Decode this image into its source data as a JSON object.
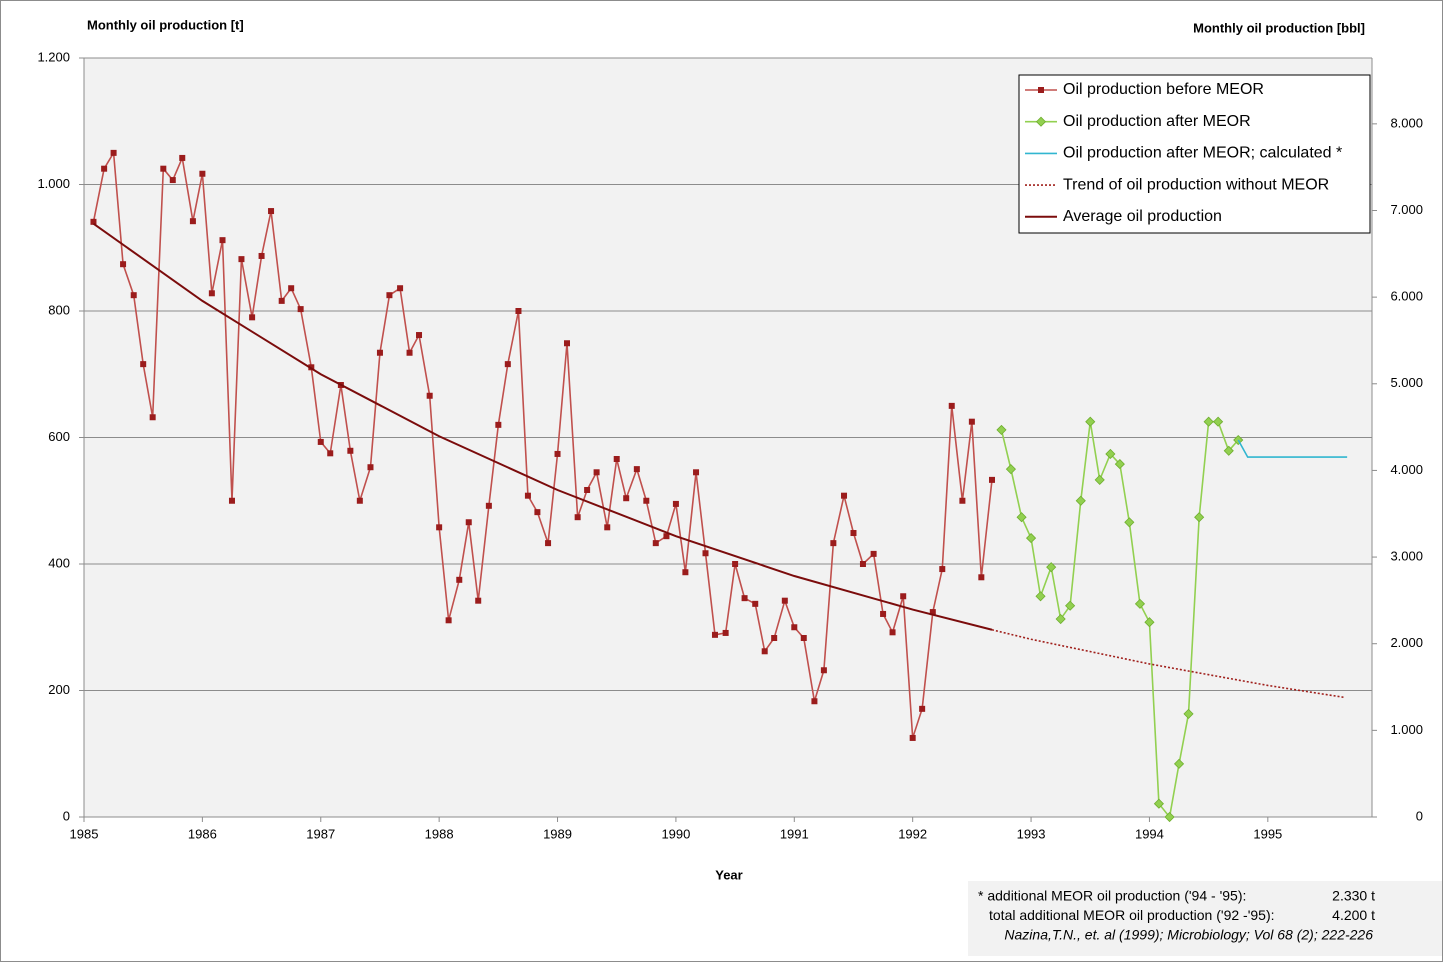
{
  "chart_data": {
    "type": "line",
    "y_title": "Monthly oil production  [t]",
    "y2_title": "Monthly oil production  [bbl]",
    "x_title": "Year",
    "xlim": [
      1985,
      1995.88
    ],
    "xticks": [
      1985,
      1986,
      1987,
      1988,
      1989,
      1990,
      1991,
      1992,
      1993,
      1994,
      1995
    ],
    "ylim": [
      0,
      1200
    ],
    "yticks": [
      0,
      200,
      400,
      600,
      800,
      {
        "value": 1000,
        "label": "1.000"
      },
      {
        "value": 1200,
        "label": "1.200"
      }
    ],
    "y2lim": [
      0,
      8760
    ],
    "y2ticks": [
      0,
      {
        "value": 1000,
        "label": "1.000"
      },
      {
        "value": 2000,
        "label": "2.000"
      },
      {
        "value": 3000,
        "label": "3.000"
      },
      {
        "value": 4000,
        "label": "4.000"
      },
      {
        "value": 5000,
        "label": "5.000"
      },
      {
        "value": 6000,
        "label": "6.000"
      },
      {
        "value": 7000,
        "label": "7.000"
      },
      {
        "value": 8000,
        "label": "8.000"
      }
    ],
    "grid": true,
    "legend": "upper right",
    "series": [
      {
        "name": "Oil production before MEOR",
        "color": "#c0504d",
        "marker_color": "#9b1c1c",
        "marker": "square",
        "x": [
          1985.08,
          1985.17,
          1985.25,
          1985.33,
          1985.42,
          1985.5,
          1985.58,
          1985.67,
          1985.75,
          1985.83,
          1985.92,
          1986.0,
          1986.08,
          1986.17,
          1986.25,
          1986.33,
          1986.42,
          1986.5,
          1986.58,
          1986.67,
          1986.75,
          1986.83,
          1986.92,
          1987.0,
          1987.08,
          1987.17,
          1987.25,
          1987.33,
          1987.42,
          1987.5,
          1987.58,
          1987.67,
          1987.75,
          1987.83,
          1987.92,
          1988.0,
          1988.08,
          1988.17,
          1988.25,
          1988.33,
          1988.42,
          1988.5,
          1988.58,
          1988.67,
          1988.75,
          1988.83,
          1988.92,
          1989.0,
          1989.08,
          1989.17,
          1989.25,
          1989.33,
          1989.42,
          1989.5,
          1989.58,
          1989.67,
          1989.75,
          1989.83,
          1989.92,
          1990.0,
          1990.08,
          1990.17,
          1990.25,
          1990.33,
          1990.42,
          1990.5,
          1990.58,
          1990.67,
          1990.75,
          1990.83,
          1990.92,
          1991.0,
          1991.08,
          1991.17,
          1991.25,
          1991.33,
          1991.42,
          1991.5,
          1991.58,
          1991.67,
          1991.75,
          1991.83,
          1991.92,
          1992.0,
          1992.08,
          1992.17,
          1992.25,
          1992.33,
          1992.42,
          1992.5,
          1992.58,
          1992.67
        ],
        "values": [
          941,
          1025,
          1050,
          874,
          825,
          716,
          632,
          1025,
          1007,
          1042,
          942,
          1017,
          828,
          912,
          500,
          882,
          790,
          887,
          958,
          816,
          836,
          803,
          711,
          593,
          575,
          683,
          579,
          500,
          553,
          734,
          825,
          836,
          734,
          762,
          666,
          458,
          311,
          375,
          466,
          342,
          492,
          620,
          716,
          800,
          508,
          482,
          433,
          574,
          749,
          474,
          517,
          545,
          458,
          566,
          504,
          550,
          500,
          433,
          444,
          495,
          387,
          545,
          417,
          288,
          291,
          400,
          346,
          337,
          262,
          283,
          342,
          300,
          283,
          183,
          232,
          433,
          508,
          449,
          400,
          416,
          321,
          292,
          349,
          125,
          171,
          324,
          392,
          650,
          500,
          625,
          379,
          533
        ]
      },
      {
        "name": "Oil production after MEOR",
        "color": "#92d050",
        "marker_color": "#92d050",
        "marker": "diamond",
        "x": [
          1992.75,
          1992.83,
          1992.92,
          1993.0,
          1993.08,
          1993.17,
          1993.25,
          1993.33,
          1993.42,
          1993.5,
          1993.58,
          1993.67,
          1993.75,
          1993.83,
          1993.92,
          1994.0,
          1994.08,
          1994.17,
          1994.25,
          1994.33,
          1994.42,
          1994.5,
          1994.58,
          1994.67,
          1994.75
        ],
        "values": [
          612,
          550,
          474,
          441,
          349,
          395,
          313,
          334,
          500,
          625,
          533,
          574,
          558,
          466,
          337,
          308,
          21,
          0,
          84,
          163,
          474,
          625,
          625,
          579,
          596
        ]
      },
      {
        "name": "Oil production after MEOR; calculated *",
        "color": "#31b6d0",
        "marker": "none",
        "x": [
          1994.75,
          1994.83,
          1995.67
        ],
        "values": [
          596,
          569,
          569
        ]
      },
      {
        "name": "Trend of oil production without MEOR",
        "color": "#a0201c",
        "marker": "none",
        "line_style": "dotted",
        "x": [
          1992.67,
          1993,
          1994,
          1995,
          1995.65
        ],
        "values": [
          296,
          281,
          242,
          208,
          189
        ]
      },
      {
        "name": "Average oil production",
        "color": "#7b0c0c",
        "marker": "none",
        "line_width": 2,
        "x": [
          1985.08,
          1986,
          1987,
          1988,
          1989,
          1990,
          1991,
          1992,
          1992.67
        ],
        "values": [
          938,
          816,
          700,
          602,
          517,
          444,
          381,
          328,
          296
        ]
      }
    ],
    "notes": {
      "rows": [
        {
          "label": "*  additional  MEOR oil production  ('94 - '95):",
          "value": "2.330 t"
        },
        {
          "label": "total additional  MEOR oil production  ('92 -'95):",
          "value": "4.200 t"
        }
      ],
      "source": "Nazina,T.N.,  et. al (1999); Microbiology; Vol 68 (2); 222-226"
    }
  }
}
